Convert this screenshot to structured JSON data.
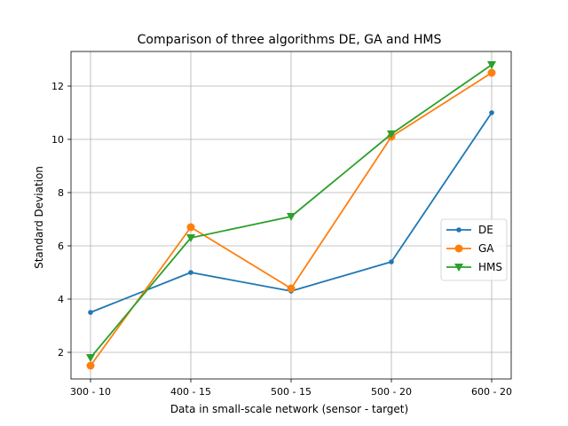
{
  "chart_data": {
    "type": "line",
    "title": "Comparison of three algorithms DE, GA and HMS",
    "xlabel": "Data in small-scale network (sensor - target)",
    "ylabel": "Standard Deviation",
    "categories": [
      "300 - 10",
      "400 - 15",
      "500 - 15",
      "500 - 20",
      "600 - 20"
    ],
    "ylim": [
      1.0,
      13.3
    ],
    "yticks": [
      2,
      4,
      6,
      8,
      10,
      12
    ],
    "grid": true,
    "legend_position": "center-right",
    "series": [
      {
        "name": "DE",
        "color": "#1f77b4",
        "marker": "circle-small",
        "values": [
          3.5,
          5.0,
          4.3,
          5.4,
          11.0
        ]
      },
      {
        "name": "GA",
        "color": "#ff7f0e",
        "marker": "circle",
        "values": [
          1.5,
          6.7,
          4.4,
          10.1,
          12.5
        ]
      },
      {
        "name": "HMS",
        "color": "#2ca02c",
        "marker": "triangle-down",
        "values": [
          1.8,
          6.3,
          7.1,
          10.2,
          12.8
        ]
      }
    ]
  }
}
